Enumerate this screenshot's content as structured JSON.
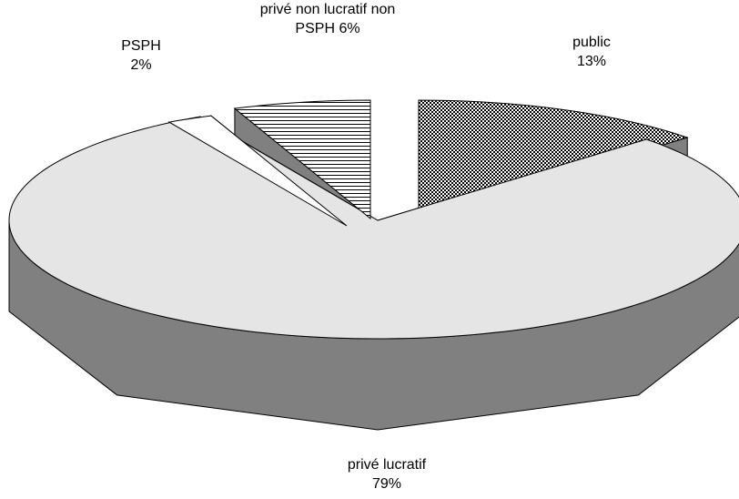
{
  "chart_data": {
    "type": "pie",
    "three_d": true,
    "legend": "none",
    "title": "",
    "slices": [
      {
        "label": "public",
        "percent_label": "13%",
        "value": 13,
        "color": "#1a1a1a",
        "pattern": "dots",
        "exploded": true
      },
      {
        "label": "privé lucratif",
        "percent_label": "79%",
        "value": 79,
        "color": "#e5e5e5",
        "pattern": "solid",
        "exploded": false
      },
      {
        "label": "PSPH",
        "percent_label": "2%",
        "value": 2,
        "color": "#ffffff",
        "pattern": "solid",
        "exploded": true
      },
      {
        "label": "privé non lucratif non PSPH",
        "percent_label": "6%",
        "value": 6,
        "color": "#ffffff",
        "pattern": "horizontal-lines",
        "exploded": true
      }
    ]
  },
  "labels": {
    "public": {
      "line1": "public",
      "line2": "13%"
    },
    "prive_lucratif": {
      "line1": "privé lucratif",
      "line2": "79%"
    },
    "psph": {
      "line1": "PSPH",
      "line2": "2%"
    },
    "prive_non_lucratif": {
      "line1": "privé non lucratif non",
      "line2": "PSPH 6%"
    }
  },
  "colors": {
    "side": "#808080",
    "stroke": "#000000"
  }
}
